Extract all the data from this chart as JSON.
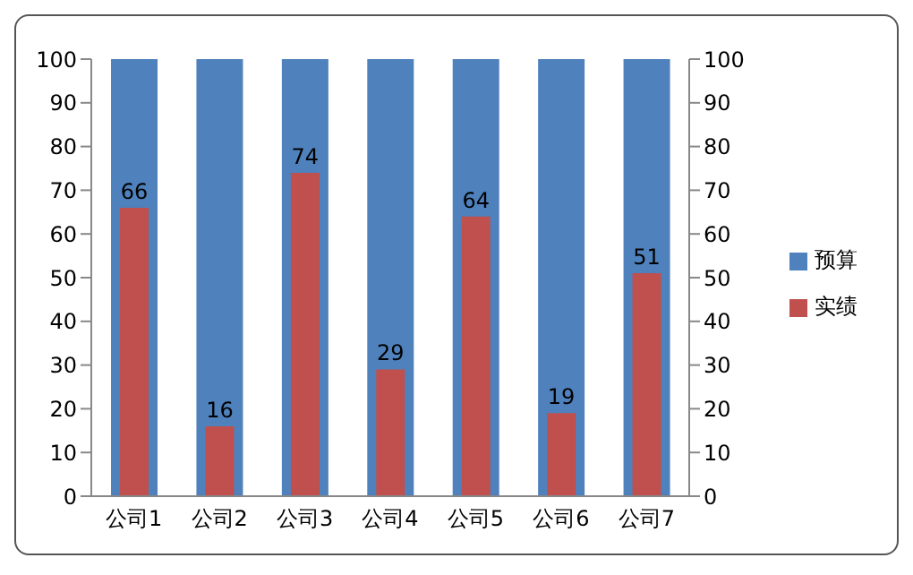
{
  "chart_data": {
    "type": "bar",
    "categories": [
      "公司1",
      "公司2",
      "公司3",
      "公司4",
      "公司5",
      "公司6",
      "公司7"
    ],
    "series": [
      {
        "name": "预算",
        "color": "#4f81bd",
        "values": [
          100,
          100,
          100,
          100,
          100,
          100,
          100
        ]
      },
      {
        "name": "实绩",
        "color": "#c0504d",
        "values": [
          66,
          16,
          74,
          29,
          64,
          19,
          51
        ],
        "value_labels": [
          "66",
          "16",
          "74",
          "29",
          "64",
          "19",
          "51"
        ]
      }
    ],
    "ylim": [
      0,
      100
    ],
    "yticks": [
      0,
      10,
      20,
      30,
      40,
      50,
      60,
      70,
      80,
      90,
      100
    ],
    "y2lim": [
      0,
      100
    ],
    "y2ticks": [
      0,
      10,
      20,
      30,
      40,
      50,
      60,
      70,
      80,
      90,
      100
    ],
    "grid": false,
    "legend": "right"
  }
}
